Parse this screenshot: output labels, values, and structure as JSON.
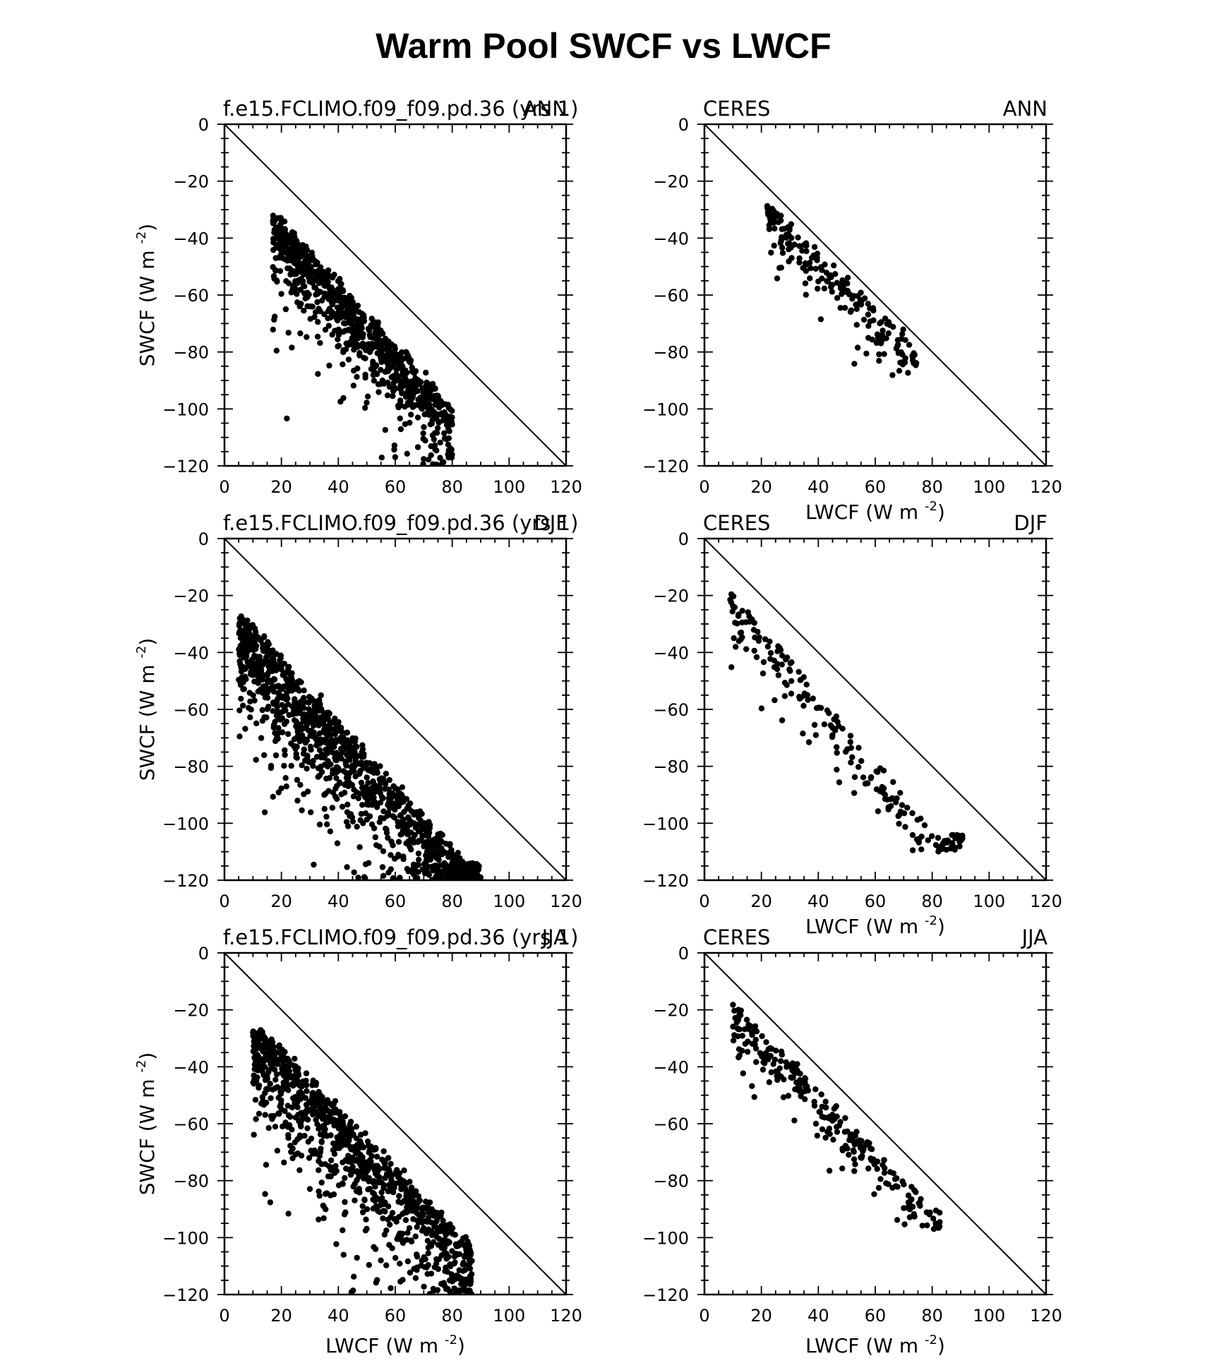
{
  "title": "Warm Pool SWCF vs LWCF",
  "axes": {
    "xlabel": "LWCF (W m",
    "ylabel": "SWCF (W m",
    "unit_exponent": "-2",
    "unit_close": ")",
    "xlim": [
      0,
      120
    ],
    "ylim": [
      -120,
      0
    ],
    "xticks": [
      0,
      20,
      40,
      60,
      80,
      100,
      120
    ],
    "yticks": [
      0,
      -20,
      -40,
      -60,
      -80,
      -100,
      -120
    ]
  },
  "chart_data": [
    {
      "type": "scatter",
      "source": "f.e15.FCLIMO.f09_f09.pd.36 (yrs 1)",
      "season": "ANN",
      "reference_line": "y = -x",
      "n_points": 900,
      "cluster": {
        "x_range": [
          17,
          80
        ],
        "y_range": [
          -32,
          -120
        ],
        "main_trend": {
          "x": [
            18,
            60
          ],
          "y": [
            -32,
            -78
          ]
        },
        "upper_edge_slope": -1.05,
        "spread": 22
      }
    },
    {
      "type": "scatter",
      "source": "CERES",
      "season": "ANN",
      "reference_line": "y = -x",
      "n_points": 200,
      "cluster": {
        "x_range": [
          22,
          75
        ],
        "y_range": [
          -28,
          -89
        ],
        "main_trend": {
          "x": [
            22,
            70
          ],
          "y": [
            -28,
            -75
          ]
        },
        "upper_edge_slope": -1.0,
        "spread": 14
      }
    },
    {
      "type": "scatter",
      "source": "f.e15.FCLIMO.f09_f09.pd.36 (yrs 1)",
      "season": "DJF",
      "reference_line": "y = -x",
      "n_points": 1200,
      "cluster": {
        "x_range": [
          5,
          90
        ],
        "y_range": [
          -27,
          -120
        ],
        "main_trend": {
          "x": [
            6,
            88
          ],
          "y": [
            -27,
            -118
          ]
        },
        "upper_edge_slope": -1.1,
        "spread": 30
      }
    },
    {
      "type": "scatter",
      "source": "CERES",
      "season": "DJF",
      "reference_line": "y = -x",
      "n_points": 200,
      "cluster": {
        "x_range": [
          9,
          91
        ],
        "y_range": [
          -17,
          -110
        ],
        "main_trend": {
          "x": [
            10,
            82
          ],
          "y": [
            -18,
            -106
          ]
        },
        "upper_edge_slope": -1.0,
        "spread": 18
      }
    },
    {
      "type": "scatter",
      "source": "f.e15.FCLIMO.f09_f09.pd.36 (yrs 1)",
      "season": "JJA",
      "reference_line": "y = -x",
      "n_points": 1000,
      "cluster": {
        "x_range": [
          10,
          87
        ],
        "y_range": [
          -27,
          -120
        ],
        "main_trend": {
          "x": [
            14,
            72
          ],
          "y": [
            -28,
            -88
          ]
        },
        "upper_edge_slope": -1.0,
        "spread": 30
      }
    },
    {
      "type": "scatter",
      "source": "CERES",
      "season": "JJA",
      "reference_line": "y = -x",
      "n_points": 260,
      "cluster": {
        "x_range": [
          10,
          83
        ],
        "y_range": [
          -18,
          -97
        ],
        "main_trend": {
          "x": [
            11,
            80
          ],
          "y": [
            -19,
            -90
          ]
        },
        "upper_edge_slope": -1.0,
        "spread": 16
      }
    }
  ]
}
